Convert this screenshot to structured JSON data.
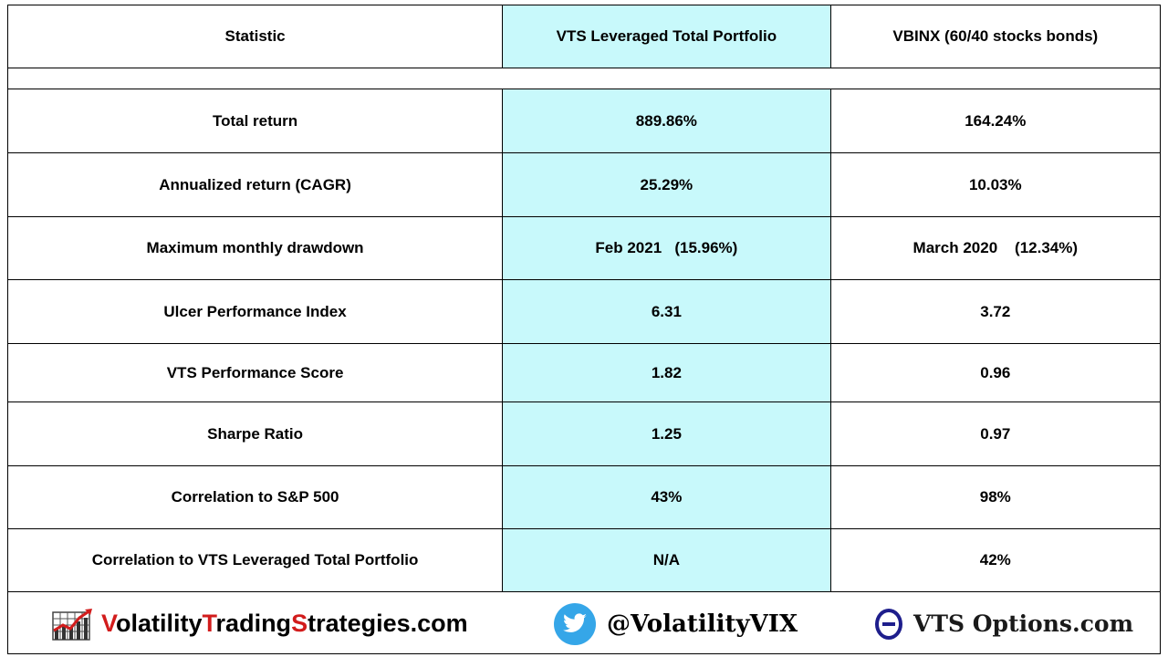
{
  "table": {
    "headers": [
      "Statistic",
      "VTS Leveraged Total Portfolio",
      "VBINX  (60/40 stocks bonds)"
    ],
    "rows": [
      [
        "Total return",
        "889.86%",
        "164.24%"
      ],
      [
        "Annualized return  (CAGR)",
        "25.29%",
        "10.03%"
      ],
      [
        "Maximum monthly drawdown",
        "Feb 2021   (15.96%)",
        "March 2020    (12.34%)"
      ],
      [
        "Ulcer Performance Index",
        "6.31",
        "3.72"
      ],
      [
        "VTS Performance Score",
        "1.82",
        "0.96"
      ],
      [
        "Sharpe Ratio",
        "1.25",
        "0.97"
      ],
      [
        "Correlation to S&P 500",
        "43%",
        "98%"
      ],
      [
        "Correlation to VTS Leveraged Total Portfolio",
        "N/A",
        "42%"
      ]
    ]
  },
  "footer": {
    "brand_parts": [
      "V",
      "olatility",
      "T",
      "rading",
      "S",
      "trategies.com"
    ],
    "twitter_handle": "@VolatilityVIX",
    "options_site": "VTS Options.com"
  },
  "colors": {
    "highlight_column": "#c8f9fb",
    "brand_red": "#d21c1c",
    "twitter_blue": "#35a6e8",
    "theta_navy": "#1e1e8c"
  },
  "icons": [
    "chart-grid-icon",
    "twitter-bird-icon",
    "theta-icon"
  ]
}
